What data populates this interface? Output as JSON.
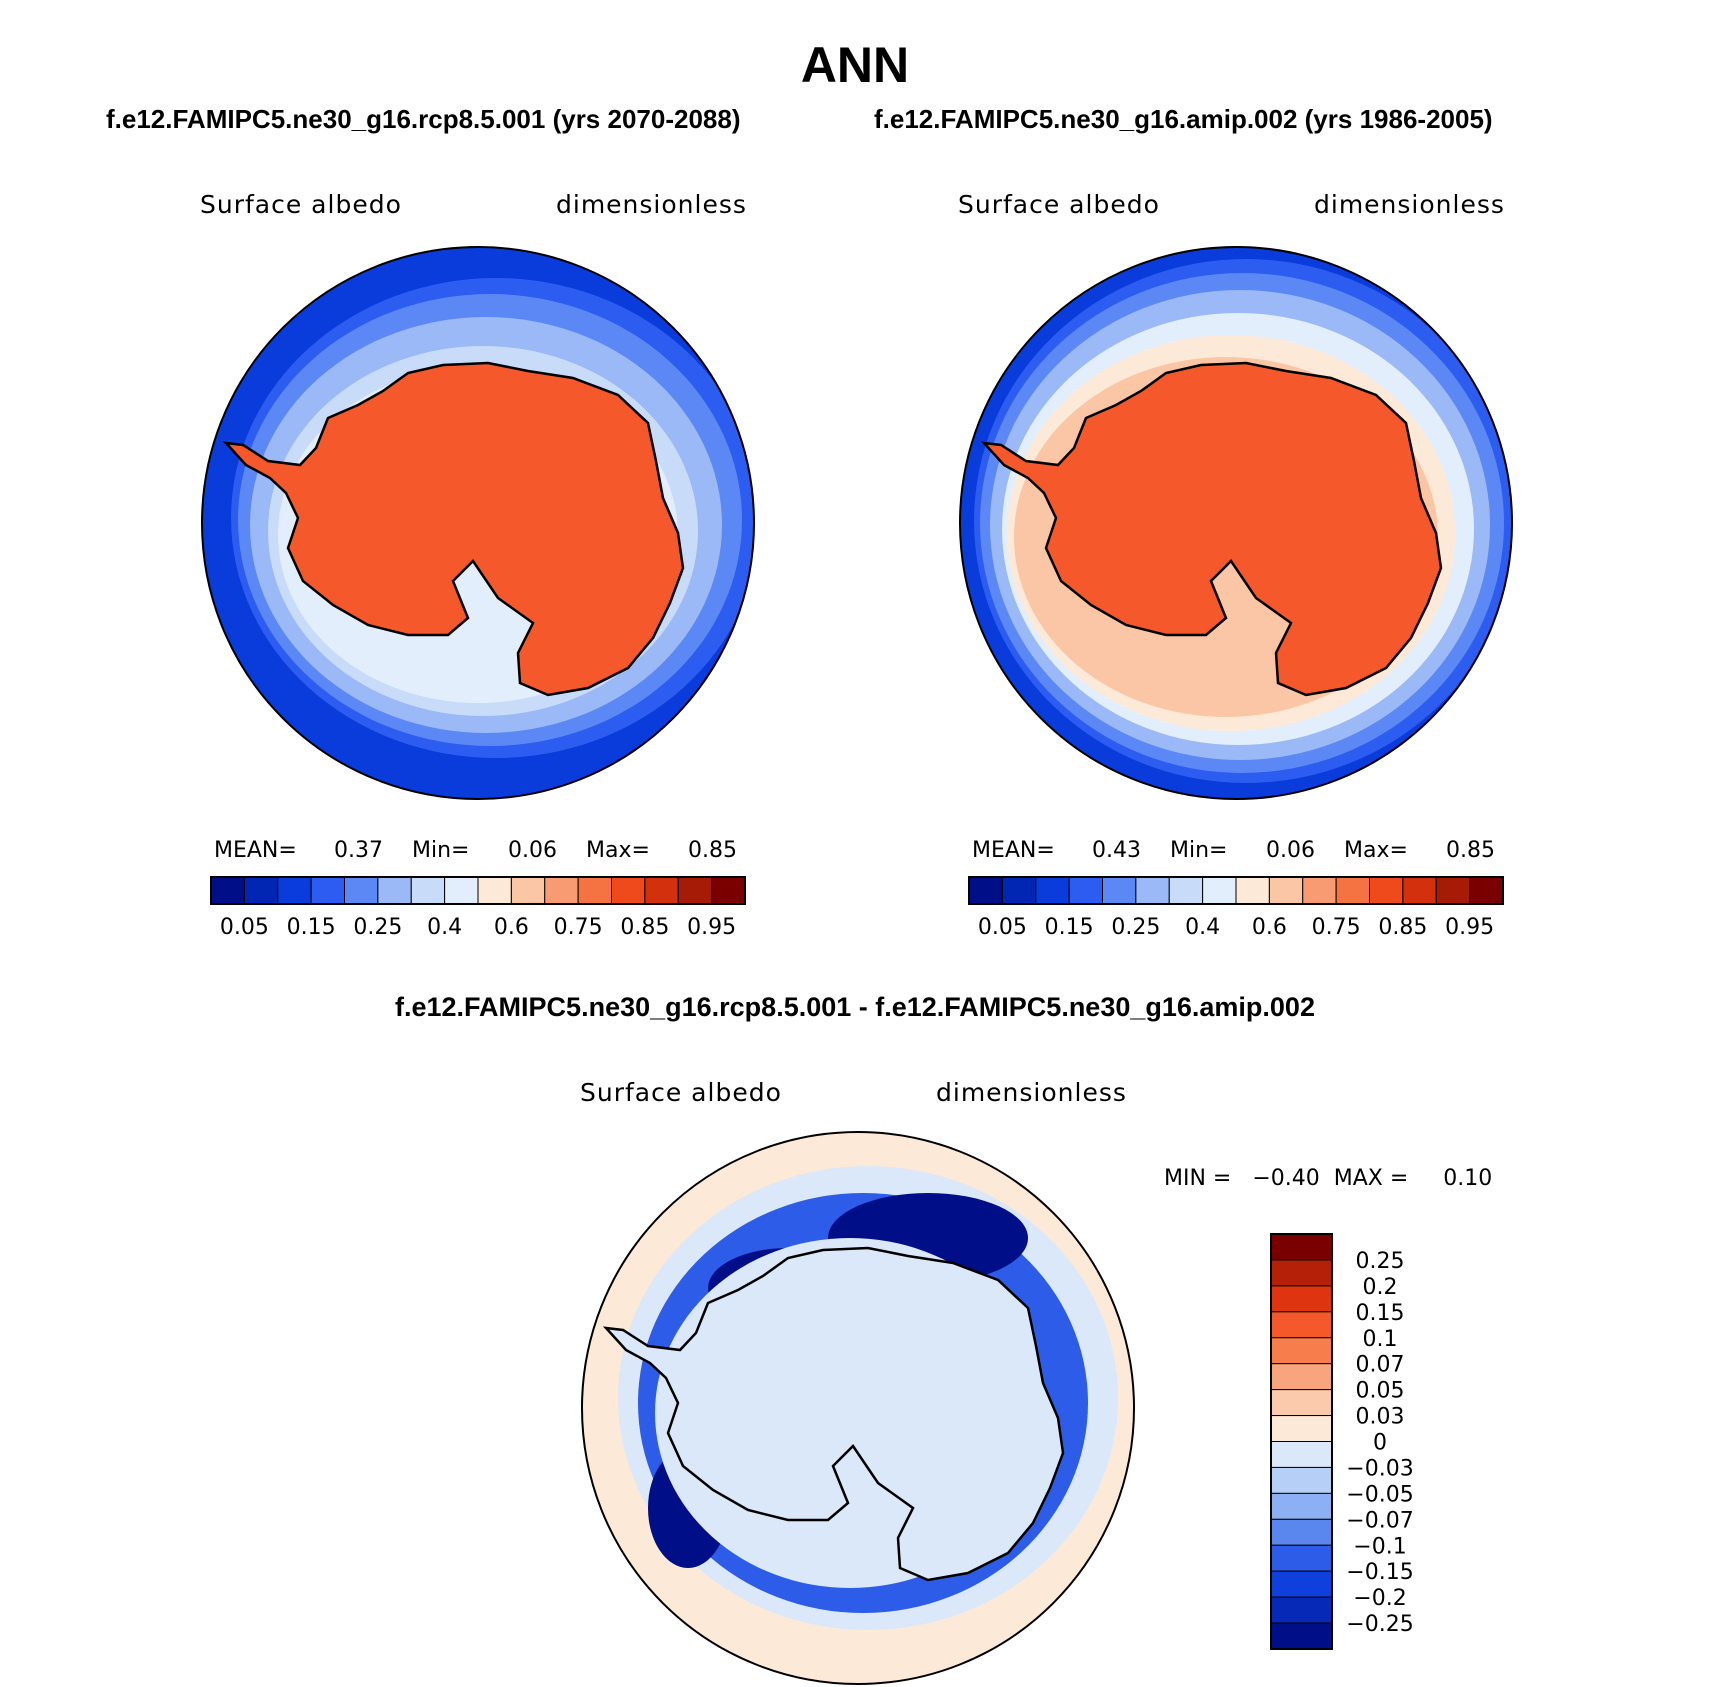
{
  "title": "ANN",
  "panels": [
    {
      "subtitle": "f.e12.FAMIPC5.ne30_g16.rcp8.5.001 (yrs 2070-2088)",
      "variable": "Surface albedo",
      "units": "dimensionless",
      "stats": {
        "mean_label": "MEAN=",
        "mean": "0.37",
        "min_label": "Min=",
        "min": "0.06",
        "max_label": "Max=",
        "max": "0.85"
      }
    },
    {
      "subtitle": "f.e12.FAMIPC5.ne30_g16.amip.002 (yrs 1986-2005)",
      "variable": "Surface albedo",
      "units": "dimensionless",
      "stats": {
        "mean_label": "MEAN=",
        "mean": "0.43",
        "min_label": "Min=",
        "min": "0.06",
        "max_label": "Max=",
        "max": "0.85"
      }
    }
  ],
  "difference": {
    "title": "f.e12.FAMIPC5.ne30_g16.rcp8.5.001 - f.e12.FAMIPC5.ne30_g16.amip.002",
    "variable": "Surface albedo",
    "units": "dimensionless",
    "minmax_text": "MIN =   −0.40  MAX =     0.10"
  },
  "abs_colorbar": {
    "colors": [
      "#000f87",
      "#0026b3",
      "#0a3bdb",
      "#2d5cf0",
      "#5c88f5",
      "#9bb8f7",
      "#c8dbf8",
      "#e2eefb",
      "#fde9d8",
      "#fbc6a6",
      "#f89b72",
      "#f57243",
      "#ee4a1c",
      "#d3300d",
      "#a51b06",
      "#7a0000"
    ],
    "tick_labels": [
      "0.05",
      "0.15",
      "0.25",
      "0.4",
      "0.6",
      "0.75",
      "0.85",
      "0.95"
    ]
  },
  "diff_colorbar": {
    "colors": [
      "#7a0000",
      "#b42008",
      "#de3510",
      "#f5582a",
      "#f77e4c",
      "#f8a47c",
      "#fbc9ab",
      "#fde9d8",
      "#dbe8fa",
      "#b6cff7",
      "#8cb0f3",
      "#5a87ee",
      "#2d5ce8",
      "#0f3fdd",
      "#0729b8",
      "#000f87"
    ],
    "tick_labels": [
      "0.25",
      "0.2",
      "0.15",
      "0.1",
      "0.07",
      "0.05",
      "0.03",
      "0",
      "−0.03",
      "−0.05",
      "−0.07",
      "−0.1",
      "−0.15",
      "−0.2",
      "−0.25"
    ]
  },
  "map_colors": {
    "ocean_low": "#0a3bdb",
    "ocean_mid": "#2d5cf0",
    "ice_edge": "#5c88f5",
    "ice_light": "#9bb8f7",
    "ice_pale": "#c8dbf8",
    "ice_white": "#e2eefb",
    "ice_peach": "#fde9d8",
    "ice_salmon": "#fbc6a6",
    "land": "#f5582a",
    "diff_pos": "#fde9d8",
    "diff_zero": "#dbe8fa",
    "diff_neg": "#2d5ce8",
    "diff_strong_neg": "#000f87",
    "coast": "#000000"
  }
}
